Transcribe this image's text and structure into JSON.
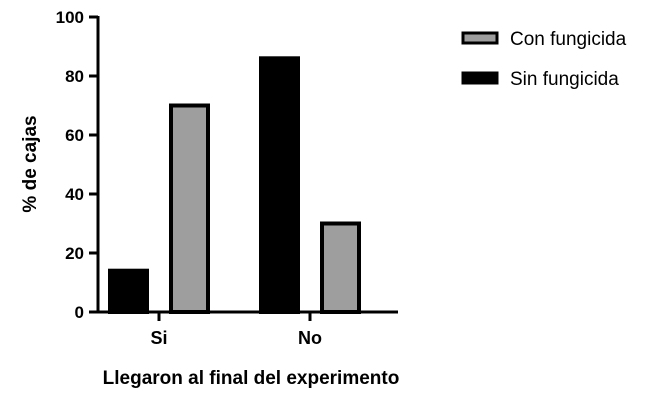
{
  "chart_data": {
    "type": "bar",
    "categories": [
      "Si",
      "No"
    ],
    "series": [
      {
        "name": "Sin fungicida",
        "values": [
          14,
          86
        ],
        "color": "#000000"
      },
      {
        "name": "Con fungicida",
        "values": [
          70,
          30
        ],
        "color": "#9e9e9e"
      }
    ],
    "xlabel": "Llegaron al final del experimento",
    "ylabel": "% de cajas",
    "ylim": [
      0,
      100
    ],
    "yticks": [
      0,
      20,
      40,
      60,
      80,
      100
    ],
    "grid": false,
    "legend_position": "top-right",
    "legend_order": [
      "Con fungicida",
      "Sin fungicida"
    ]
  }
}
